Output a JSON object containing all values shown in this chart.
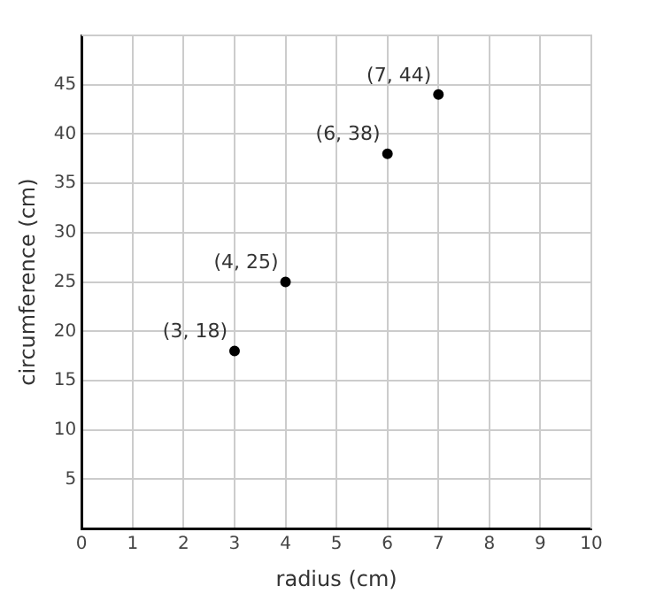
{
  "chart_data": {
    "type": "scatter",
    "xlabel": "radius (cm)",
    "ylabel": "circumference (cm)",
    "x": [
      3,
      4,
      6,
      7
    ],
    "values": [
      18,
      25,
      38,
      44
    ],
    "value_labels": [
      "(3, 18)",
      "(4, 25)",
      "(6, 38)",
      "(7, 44)"
    ],
    "color": "#000000",
    "marker": "circle",
    "xlim": [
      0,
      10
    ],
    "xticks": [
      0,
      1,
      2,
      3,
      4,
      5,
      6,
      7,
      8,
      9,
      10
    ],
    "ylim": [
      0,
      50
    ],
    "yticks": [
      5,
      10,
      15,
      20,
      25,
      30,
      35,
      40,
      45
    ],
    "grid": true,
    "legend": false
  }
}
